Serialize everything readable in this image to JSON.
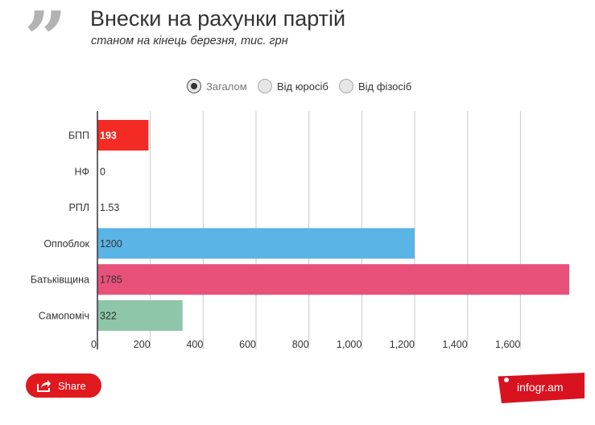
{
  "header": {
    "quote_glyph": "”",
    "title": "Внески на рахунки партій",
    "subtitle": "станом на кінець березня, тис. грн"
  },
  "filters": [
    {
      "label": "Загалом",
      "selected": true
    },
    {
      "label": "Від юросіб",
      "selected": false
    },
    {
      "label": "Від фізосіб",
      "selected": false
    }
  ],
  "chart_data": {
    "type": "bar",
    "orientation": "horizontal",
    "categories": [
      "БПП",
      "НФ",
      "РПЛ",
      "Оппоблок",
      "Батьківщина",
      "Самопоміч"
    ],
    "values": [
      193,
      0,
      1.53,
      1200,
      1785,
      322
    ],
    "value_labels": [
      "193",
      "0",
      "1.53",
      "1200",
      "1785",
      "322"
    ],
    "colors": [
      "#f42a24",
      "#f42a24",
      "#f3c85a",
      "#5ab4e5",
      "#e8517a",
      "#8dc6a8"
    ],
    "xticks": [
      "0",
      "200",
      "400",
      "600",
      "800",
      "1,000",
      "1,200",
      "1,400",
      "1,600"
    ],
    "xtick_values": [
      0,
      200,
      400,
      600,
      800,
      1000,
      1200,
      1400,
      1600
    ],
    "xlim": [
      0,
      1800
    ],
    "grid": true,
    "title": "Внески на рахунки партій",
    "xlabel": "",
    "ylabel": ""
  },
  "footer": {
    "share_label": "Share",
    "brand_label": "infogr.am"
  }
}
